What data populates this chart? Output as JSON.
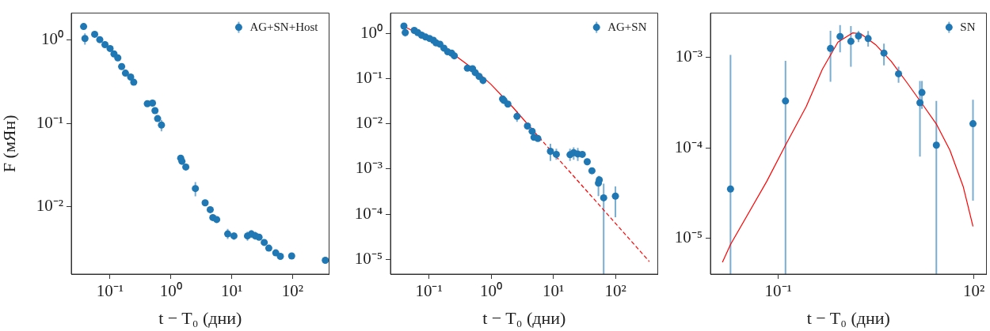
{
  "chart_data": [
    {
      "type": "scatter",
      "xlabel": "t − T₀ (дни)",
      "ylabel": "F (мЯн)",
      "log": "xy",
      "grid": false,
      "legend": "top right",
      "xlim": [
        0.023,
        400
      ],
      "xticks": [
        {
          "value": 0.1,
          "label": "10⁻¹"
        },
        {
          "value": 1,
          "label": "10⁰"
        },
        {
          "value": 10,
          "label": "10¹"
        },
        {
          "value": 100,
          "label": "10²"
        }
      ],
      "ylim": [
        0.00155,
        2.1
      ],
      "yticks": [
        {
          "value": 0.01,
          "label": "10⁻²"
        },
        {
          "value": 0.1,
          "label": "10⁻¹"
        },
        {
          "value": 1,
          "label": "10⁰"
        }
      ],
      "series": [
        {
          "name": "AG+SN+Host",
          "marker": "circle",
          "color": "#1f77b4",
          "x": [
            0.0367,
            0.0386,
            0.0558,
            0.0677,
            0.0824,
            0.1,
            0.116,
            0.134,
            0.155,
            0.179,
            0.218,
            0.245,
            0.41,
            0.498,
            0.548,
            0.605,
            0.7,
            1.45,
            1.52,
            1.76,
            2.53,
            3.66,
            4.44,
            4.9,
            5.67,
            8.6,
            10.9,
            18.2,
            21.1,
            24.4,
            28.2,
            34.3,
            40.8,
            53.1,
            63.2,
            97,
            347
          ],
          "values": [
            1.45,
            1.04,
            1.17,
            1.01,
            0.88,
            0.79,
            0.68,
            0.61,
            0.48,
            0.4,
            0.359,
            0.311,
            0.172,
            0.175,
            0.142,
            0.114,
            0.0955,
            0.0382,
            0.035,
            0.0299,
            0.0165,
            0.0111,
            0.0092,
            0.0074,
            0.007,
            0.00471,
            0.00445,
            0.00445,
            0.00471,
            0.00447,
            0.0043,
            0.00372,
            0.00318,
            0.00279,
            0.00253,
            0.00256,
            0.00227
          ],
          "errors": [
            null,
            [
              0.88,
              1.2
            ],
            null,
            null,
            null,
            null,
            null,
            null,
            null,
            null,
            null,
            null,
            null,
            null,
            null,
            null,
            [
              0.08,
              0.11
            ],
            null,
            null,
            null,
            [
              0.0133,
              0.0197
            ],
            null,
            null,
            null,
            null,
            [
              0.0041,
              0.0054
            ],
            [
              0.004,
              0.0049
            ],
            [
              0.0039,
              0.005
            ],
            [
              0.0042,
              0.0052
            ],
            [
              0.004,
              0.005
            ],
            null,
            null,
            null,
            null,
            null,
            null,
            null
          ]
        }
      ]
    },
    {
      "type": "scatter",
      "xlabel": "t − T₀ (дни)",
      "log": "xy",
      "grid": false,
      "legend": "top right",
      "xlim": [
        0.024,
        480
      ],
      "xticks": [
        {
          "value": 0.1,
          "label": "10⁻¹"
        },
        {
          "value": 1,
          "label": "10⁰"
        },
        {
          "value": 10,
          "label": "10¹"
        },
        {
          "value": 100,
          "label": "10²"
        }
      ],
      "ylim": [
        4.7e-06,
        2.8
      ],
      "yticks": [
        {
          "value": 1e-05,
          "label": "10⁻⁵"
        },
        {
          "value": 0.0001,
          "label": "10⁻⁴"
        },
        {
          "value": 0.001,
          "label": "10⁻³"
        },
        {
          "value": 0.01,
          "label": "10⁻²"
        },
        {
          "value": 0.1,
          "label": "10⁻¹"
        },
        {
          "value": 1,
          "label": "10⁰"
        }
      ],
      "series": [
        {
          "type": "line",
          "marker": "none",
          "line_style": "solid",
          "color": "#ff0000",
          "x": [
            0.0427,
            0.102,
            0.269,
            0.582,
            0.99,
            2.25,
            5.93
          ],
          "values": [
            1.35,
            0.75,
            0.318,
            0.145,
            0.0749,
            0.0229,
            0.005
          ]
        },
        {
          "type": "line",
          "marker": "none",
          "line_style": "dashed",
          "color": "#ff0000",
          "x": [
            5.93,
            352
          ],
          "values": [
            0.005,
            8.9e-06
          ]
        },
        {
          "name": "AG+SN",
          "marker": "circle",
          "color": "#1f77b4",
          "x": [
            0.0395,
            0.0415,
            0.058,
            0.066,
            0.076,
            0.088,
            0.102,
            0.118,
            0.13,
            0.15,
            0.174,
            0.2,
            0.232,
            0.256,
            0.415,
            0.503,
            0.555,
            0.641,
            0.741,
            1.53,
            1.61,
            1.86,
            2.61,
            3.84,
            4.57,
            4.89,
            5.65,
            9.0,
            11.2,
            18.6,
            21.3,
            24.8,
            29.3,
            35.2,
            41.9,
            53.3,
            55,
            64.7,
            100
          ],
          "values": [
            1.45,
            1.04,
            1.16,
            1.04,
            0.91,
            0.83,
            0.77,
            0.7,
            0.615,
            0.575,
            0.47,
            0.39,
            0.363,
            0.318,
            0.169,
            0.165,
            0.135,
            0.111,
            0.091,
            0.0354,
            0.0327,
            0.0272,
            0.0145,
            0.0089,
            0.0068,
            0.005,
            0.0047,
            0.00245,
            0.0021,
            0.00206,
            0.00229,
            0.00214,
            0.0021,
            0.00144,
            0.00091,
            0.000485,
            0.00057,
            0.000229,
            0.00025
          ],
          "errors": [
            null,
            [
              0.85,
              1.2
            ],
            null,
            null,
            null,
            null,
            null,
            null,
            null,
            null,
            null,
            null,
            null,
            null,
            null,
            null,
            null,
            null,
            [
              0.075,
              0.105
            ],
            null,
            null,
            null,
            [
              0.011,
              0.019
            ],
            null,
            null,
            null,
            null,
            [
              0.0015,
              0.0036
            ],
            [
              0.0016,
              0.0028
            ],
            [
              0.0015,
              0.0028
            ],
            [
              0.0016,
              0.003
            ],
            [
              0.0015,
              0.0029
            ],
            null,
            [
              0.0012,
              0.0017
            ],
            null,
            [
              0.00025,
              0.0007
            ],
            [
              0.00045,
              0.0007
            ],
            [
              4.7e-06,
              0.00047
            ],
            [
              8.5e-05,
              0.00041
            ]
          ]
        }
      ]
    },
    {
      "type": "scatter",
      "xlabel": "t − T₀ (дни)",
      "log": "xy",
      "grid": false,
      "legend": "top right",
      "xlim": [
        0.0091,
        156
      ],
      "xticks": [
        {
          "value": 0.1,
          "label": "10⁻¹"
        },
        {
          "value": 100,
          "label": "10²"
        }
      ],
      "ylim": [
        4e-06,
        0.0031
      ],
      "yticks": [
        {
          "value": 1e-05,
          "label": "10⁻⁵"
        },
        {
          "value": 0.0001,
          "label": "10⁻⁴"
        },
        {
          "value": 0.001,
          "label": "10⁻³"
        }
      ],
      "series": [
        {
          "type": "line",
          "marker": "none",
          "line_style": "solid",
          "color": "#ff0000",
          "x": [
            0.0139,
            0.0185,
            0.0665,
            0.129,
            0.268,
            0.474,
            0.824,
            1.38,
            1.84,
            3.1,
            5.4,
            9.55,
            16.7,
            26.9,
            43.0,
            68.9,
            97
          ],
          "values": [
            5.4e-06,
            8.5e-06,
            4.25e-05,
            0.000107,
            0.000286,
            0.00074,
            0.00148,
            0.00187,
            0.00183,
            0.00139,
            0.000906,
            0.00052,
            0.000296,
            0.000181,
            9.4e-05,
            3.7e-05,
            1.35e-05
          ]
        },
        {
          "name": "SN",
          "marker": "circle",
          "color": "#1f77b4",
          "x": [
            0.0185,
            0.129,
            0.632,
            0.887,
            1.3,
            1.7,
            2.39,
            4.18,
            7.0,
            14.9,
            16.0,
            26.6,
            97
          ],
          "values": [
            3.5e-05,
            0.00033,
            0.00126,
            0.00171,
            0.00151,
            0.00173,
            0.00162,
            0.00112,
            0.00066,
            0.000316,
            0.00041,
            0.000107,
            0.000185
          ],
          "errors": [
            [
              4e-06,
              0.00107
            ],
            [
              4e-06,
              0.00092
            ],
            [
              0.00054,
              0.00197
            ],
            [
              0.00114,
              0.00228
            ],
            [
              0.00079,
              0.00223
            ],
            [
              0.00148,
              0.00196
            ],
            [
              0.00132,
              0.00196
            ],
            [
              0.00082,
              0.00142
            ],
            [
              0.000525,
              0.00079
            ],
            [
              8e-05,
              0.00055
            ],
            [
              0.00027,
              0.00055
            ],
            [
              4e-06,
              0.00033
            ],
            [
              2.6e-05,
              0.00034
            ]
          ]
        }
      ]
    }
  ]
}
